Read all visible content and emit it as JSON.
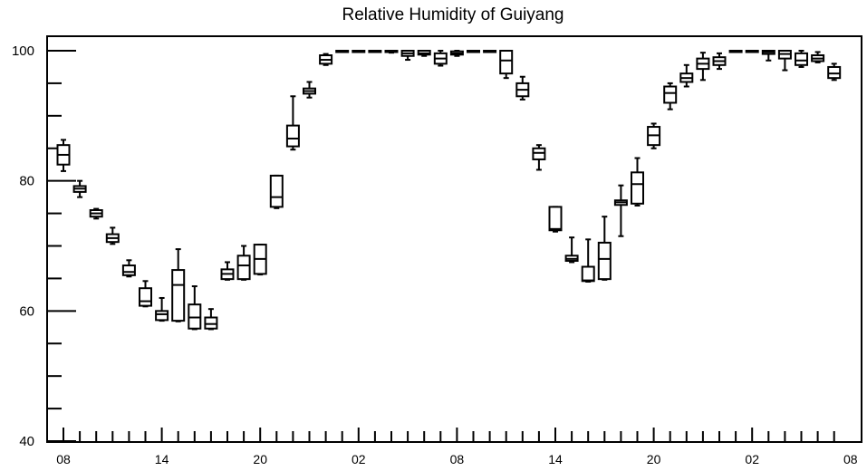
{
  "chart_data": {
    "type": "box",
    "title": "Relative Humidity of Guiyang",
    "xlabel": "",
    "ylabel": "",
    "ylim": [
      40,
      102
    ],
    "yticks": [
      40,
      60,
      80,
      100
    ],
    "xtick_labels": [
      "08",
      "14",
      "20",
      "02",
      "08",
      "14",
      "20",
      "02",
      "08"
    ],
    "grid": false,
    "boxes": [
      {
        "hour": 0,
        "min": 81.5,
        "q1": 82.5,
        "median": 84.0,
        "q3": 85.5,
        "max": 86.3
      },
      {
        "hour": 1,
        "min": 77.5,
        "q1": 78.3,
        "median": 78.8,
        "q3": 79.2,
        "max": 80.0
      },
      {
        "hour": 2,
        "min": 74.2,
        "q1": 74.5,
        "median": 75.0,
        "q3": 75.5,
        "max": 75.7
      },
      {
        "hour": 3,
        "min": 70.3,
        "q1": 70.6,
        "median": 71.2,
        "q3": 71.8,
        "max": 72.8
      },
      {
        "hour": 4,
        "min": 65.3,
        "q1": 65.5,
        "median": 66.0,
        "q3": 67.0,
        "max": 67.8
      },
      {
        "hour": 5,
        "min": 60.7,
        "q1": 60.8,
        "median": 61.5,
        "q3": 63.5,
        "max": 64.6
      },
      {
        "hour": 6,
        "min": 58.5,
        "q1": 58.6,
        "median": 59.5,
        "q3": 60.0,
        "max": 62.0
      },
      {
        "hour": 7,
        "min": 58.4,
        "q1": 58.5,
        "median": 64.0,
        "q3": 66.3,
        "max": 69.5
      },
      {
        "hour": 8,
        "min": 57.2,
        "q1": 57.3,
        "median": 59.0,
        "q3": 61.0,
        "max": 63.8
      },
      {
        "hour": 9,
        "min": 57.2,
        "q1": 57.3,
        "median": 58.0,
        "q3": 59.0,
        "max": 60.3
      },
      {
        "hour": 10,
        "min": 64.8,
        "q1": 64.9,
        "median": 65.7,
        "q3": 66.4,
        "max": 67.5
      },
      {
        "hour": 11,
        "min": 64.8,
        "q1": 64.9,
        "median": 67.0,
        "q3": 68.5,
        "max": 70.0
      },
      {
        "hour": 12,
        "min": 65.6,
        "q1": 65.7,
        "median": 68.0,
        "q3": 70.2,
        "max": 70.2
      },
      {
        "hour": 13,
        "min": 75.8,
        "q1": 76.0,
        "median": 77.5,
        "q3": 80.8,
        "max": 80.8
      },
      {
        "hour": 14,
        "min": 84.8,
        "q1": 85.3,
        "median": 86.5,
        "q3": 88.5,
        "max": 93.0
      },
      {
        "hour": 15,
        "min": 92.8,
        "q1": 93.4,
        "median": 93.8,
        "q3": 94.2,
        "max": 95.2
      },
      {
        "hour": 16,
        "min": 97.8,
        "q1": 98.0,
        "median": 98.6,
        "q3": 99.3,
        "max": 99.5
      },
      {
        "hour": 17,
        "min": 99.9,
        "q1": 99.9,
        "median": 99.95,
        "q3": 100.0,
        "max": 100.0
      },
      {
        "hour": 18,
        "min": 99.9,
        "q1": 99.9,
        "median": 99.95,
        "q3": 100.0,
        "max": 100.0
      },
      {
        "hour": 19,
        "min": 99.9,
        "q1": 99.9,
        "median": 99.95,
        "q3": 100.0,
        "max": 100.0
      },
      {
        "hour": 20,
        "min": 99.7,
        "q1": 99.8,
        "median": 99.9,
        "q3": 100.0,
        "max": 100.0
      },
      {
        "hour": 21,
        "min": 98.6,
        "q1": 99.2,
        "median": 99.6,
        "q3": 100.0,
        "max": 100.0
      },
      {
        "hour": 22,
        "min": 99.2,
        "q1": 99.4,
        "median": 99.6,
        "q3": 100.0,
        "max": 100.0
      },
      {
        "hour": 23,
        "min": 97.7,
        "q1": 98.0,
        "median": 98.8,
        "q3": 99.6,
        "max": 100.0
      },
      {
        "hour": 24,
        "min": 99.2,
        "q1": 99.4,
        "median": 99.6,
        "q3": 99.9,
        "max": 100.0
      },
      {
        "hour": 25,
        "min": 99.8,
        "q1": 99.85,
        "median": 99.9,
        "q3": 100.0,
        "max": 100.0
      },
      {
        "hour": 26,
        "min": 99.8,
        "q1": 99.85,
        "median": 99.9,
        "q3": 100.0,
        "max": 100.0
      },
      {
        "hour": 27,
        "min": 95.8,
        "q1": 96.5,
        "median": 98.5,
        "q3": 100.0,
        "max": 100.0
      },
      {
        "hour": 28,
        "min": 92.5,
        "q1": 93.0,
        "median": 94.0,
        "q3": 95.0,
        "max": 96.0
      },
      {
        "hour": 29,
        "min": 81.7,
        "q1": 83.3,
        "median": 84.3,
        "q3": 85.0,
        "max": 85.5
      },
      {
        "hour": 30,
        "min": 72.2,
        "q1": 72.4,
        "median": 72.6,
        "q3": 76.0,
        "max": 76.0
      },
      {
        "hour": 31,
        "min": 67.5,
        "q1": 67.7,
        "median": 68.0,
        "q3": 68.5,
        "max": 71.3
      },
      {
        "hour": 32,
        "min": 64.5,
        "q1": 64.6,
        "median": 64.7,
        "q3": 66.8,
        "max": 71.0
      },
      {
        "hour": 33,
        "min": 64.8,
        "q1": 64.9,
        "median": 68.0,
        "q3": 70.5,
        "max": 74.5
      },
      {
        "hour": 34,
        "min": 71.5,
        "q1": 76.3,
        "median": 76.7,
        "q3": 77.0,
        "max": 79.3
      },
      {
        "hour": 35,
        "min": 76.2,
        "q1": 76.5,
        "median": 79.5,
        "q3": 81.3,
        "max": 83.5
      },
      {
        "hour": 36,
        "min": 85.0,
        "q1": 85.5,
        "median": 87.0,
        "q3": 88.3,
        "max": 88.8
      },
      {
        "hour": 37,
        "min": 91.0,
        "q1": 92.0,
        "median": 93.5,
        "q3": 94.5,
        "max": 95.0
      },
      {
        "hour": 38,
        "min": 94.5,
        "q1": 95.2,
        "median": 95.8,
        "q3": 96.5,
        "max": 97.8
      },
      {
        "hour": 39,
        "min": 95.5,
        "q1": 97.2,
        "median": 98.0,
        "q3": 98.8,
        "max": 99.7
      },
      {
        "hour": 40,
        "min": 97.2,
        "q1": 97.8,
        "median": 98.4,
        "q3": 99.0,
        "max": 99.6
      },
      {
        "hour": 41,
        "min": 99.8,
        "q1": 99.85,
        "median": 99.9,
        "q3": 100.0,
        "max": 100.0
      },
      {
        "hour": 42,
        "min": 99.8,
        "q1": 99.85,
        "median": 99.9,
        "q3": 100.0,
        "max": 100.0
      },
      {
        "hour": 43,
        "min": 98.5,
        "q1": 99.5,
        "median": 99.8,
        "q3": 100.0,
        "max": 100.0
      },
      {
        "hour": 44,
        "min": 97.0,
        "q1": 98.8,
        "median": 99.5,
        "q3": 100.0,
        "max": 100.0
      },
      {
        "hour": 45,
        "min": 97.5,
        "q1": 97.8,
        "median": 98.5,
        "q3": 99.6,
        "max": 100.0
      },
      {
        "hour": 46,
        "min": 98.2,
        "q1": 98.4,
        "median": 98.8,
        "q3": 99.3,
        "max": 99.8
      },
      {
        "hour": 47,
        "min": 95.5,
        "q1": 95.8,
        "median": 96.5,
        "q3": 97.5,
        "max": 98.0
      }
    ]
  }
}
